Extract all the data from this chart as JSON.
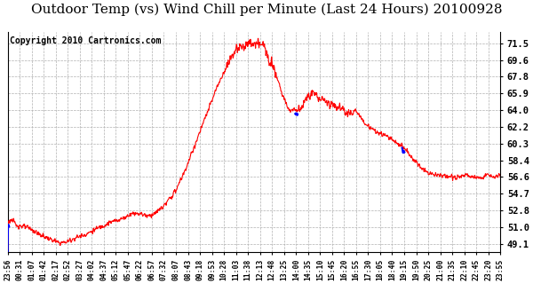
{
  "title": "Outdoor Temp (vs) Wind Chill per Minute (Last 24 Hours) 20100928",
  "copyright": "Copyright 2010 Cartronics.com",
  "yticks": [
    49.1,
    51.0,
    52.8,
    54.7,
    56.6,
    58.4,
    60.3,
    62.2,
    64.0,
    65.9,
    67.8,
    69.6,
    71.5
  ],
  "ylim": [
    48.2,
    72.8
  ],
  "xtick_labels": [
    "23:56",
    "00:31",
    "01:07",
    "01:42",
    "02:17",
    "02:52",
    "03:27",
    "04:02",
    "04:37",
    "05:12",
    "05:47",
    "06:22",
    "06:57",
    "07:32",
    "08:07",
    "08:43",
    "09:18",
    "09:53",
    "10:28",
    "11:03",
    "11:38",
    "12:13",
    "12:48",
    "13:25",
    "14:00",
    "14:35",
    "15:10",
    "15:45",
    "16:20",
    "16:55",
    "17:30",
    "18:05",
    "18:40",
    "19:15",
    "19:50",
    "20:25",
    "21:00",
    "21:35",
    "22:10",
    "22:45",
    "23:20",
    "23:55"
  ],
  "background_color": "#ffffff",
  "plot_bg_color": "#ffffff",
  "grid_color": "#b0b0b0",
  "line_color_red": "#ff0000",
  "line_color_blue": "#0000ff",
  "title_fontsize": 11,
  "copyright_fontsize": 7,
  "copyright_color": "#000000"
}
